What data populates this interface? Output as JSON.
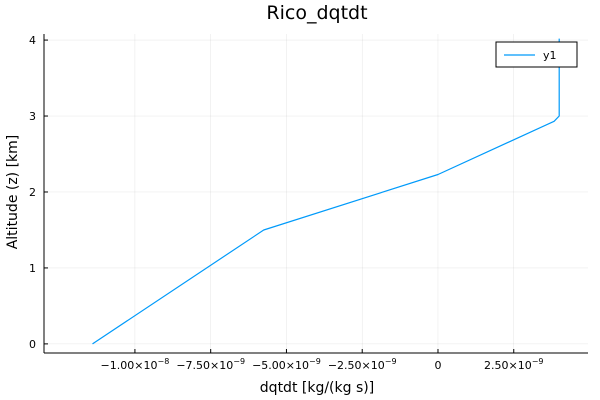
{
  "chart_data": {
    "type": "line",
    "title": "Rico_dqtdt",
    "xlabel": "dqtdt [kg/(kg s)]",
    "ylabel": "Altitude (z) [km]",
    "xlim": [
      -1.3e-08,
      4.95e-09
    ],
    "ylim": [
      -0.12,
      4.08
    ],
    "grid": true,
    "legend_position": "top-right",
    "x_ticks": [
      {
        "value": -1e-08,
        "mantissa": "−1.00×10",
        "exp": "−8"
      },
      {
        "value": -7.5e-09,
        "mantissa": "−7.50×10",
        "exp": "−9"
      },
      {
        "value": -5e-09,
        "mantissa": "−5.00×10",
        "exp": "−9"
      },
      {
        "value": -2.5e-09,
        "mantissa": "−2.50×10",
        "exp": "−9"
      },
      {
        "value": 0,
        "mantissa": "0",
        "exp": ""
      },
      {
        "value": 2.5e-09,
        "mantissa": "2.50×10",
        "exp": "−9"
      }
    ],
    "y_ticks": [
      {
        "value": 0,
        "label": "0"
      },
      {
        "value": 1,
        "label": "1"
      },
      {
        "value": 2,
        "label": "2"
      },
      {
        "value": 3,
        "label": "3"
      },
      {
        "value": 4,
        "label": "4"
      }
    ],
    "series": [
      {
        "name": "y1",
        "color": "#009AFA",
        "x": [
          -1.14e-08,
          -5.75e-09,
          0,
          3.83e-09,
          4e-09,
          4e-09,
          4e-09
        ],
        "y": [
          0,
          1.5,
          2.23,
          2.93,
          3.0,
          3.5,
          4.02
        ]
      }
    ]
  }
}
